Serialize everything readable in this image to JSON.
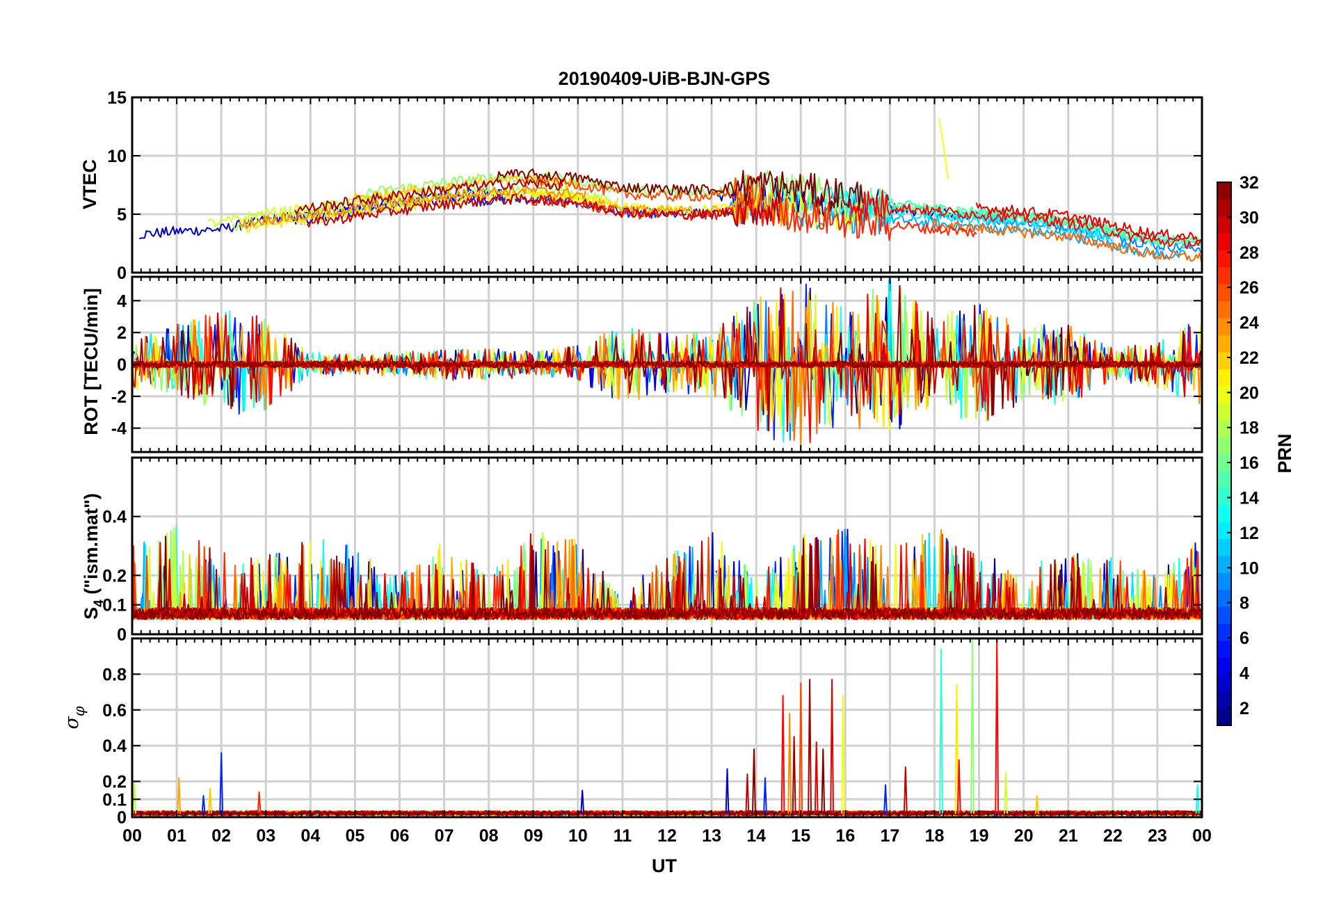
{
  "figure": {
    "title": "20190409-UiB-BJN-GPS",
    "xlabel": "UT",
    "x_tick_labels": [
      "00",
      "01",
      "02",
      "03",
      "04",
      "05",
      "06",
      "07",
      "08",
      "09",
      "10",
      "11",
      "12",
      "13",
      "14",
      "15",
      "16",
      "17",
      "18",
      "19",
      "20",
      "21",
      "22",
      "23",
      "00"
    ],
    "colorbar": {
      "label": "PRN",
      "colormap": "jet",
      "range": [
        1,
        32
      ],
      "ticks": [
        "2",
        "4",
        "6",
        "8",
        "10",
        "12",
        "14",
        "16",
        "18",
        "20",
        "22",
        "24",
        "26",
        "28",
        "30",
        "32"
      ],
      "tick_values": [
        2,
        4,
        6,
        8,
        10,
        12,
        14,
        16,
        18,
        20,
        22,
        24,
        26,
        28,
        30,
        32
      ]
    }
  },
  "chart_data": [
    {
      "type": "line",
      "panel": "VTEC",
      "ylabel": "VTEC",
      "xlim": [
        0,
        24
      ],
      "ylim": [
        0,
        15
      ],
      "y_ticks": [
        "0",
        "5",
        "10",
        "15"
      ],
      "y_tick_values": [
        0,
        5,
        10,
        15
      ],
      "grid": true,
      "series_by_prn": true,
      "approx_profile": {
        "hours": [
          0,
          1,
          2,
          3,
          4,
          5,
          6,
          7,
          8,
          9,
          10,
          11,
          12,
          13,
          14,
          15,
          16,
          17,
          18,
          19,
          20,
          21,
          22,
          23,
          24
        ],
        "typical_vtec": [
          3.5,
          3.8,
          4.0,
          4.8,
          5.2,
          5.8,
          6.3,
          6.8,
          7.2,
          7.3,
          7.0,
          6.2,
          6.0,
          6.0,
          6.5,
          6.0,
          5.5,
          5.2,
          4.8,
          4.5,
          4.2,
          3.8,
          3.0,
          2.2,
          2.0
        ],
        "peak_vtec": 13.2,
        "peak_hour": 18.1
      }
    },
    {
      "type": "line",
      "panel": "ROT",
      "ylabel": "ROT [TECU/min]",
      "xlim": [
        0,
        24
      ],
      "ylim": [
        -5.5,
        5.5
      ],
      "y_ticks": [
        "-4",
        "-2",
        "0",
        "2",
        "4"
      ],
      "y_tick_values": [
        -4,
        -2,
        0,
        2,
        4
      ],
      "grid": true,
      "series_by_prn": true,
      "approx_envelope": {
        "hours": [
          0,
          1,
          2,
          3,
          4,
          5,
          6,
          7,
          8,
          9,
          10,
          11,
          12,
          13,
          14,
          15,
          16,
          17,
          18,
          19,
          20,
          21,
          22,
          23,
          24
        ],
        "abs_max_rot": [
          1.5,
          2.5,
          3.5,
          3.0,
          0.8,
          0.6,
          0.8,
          1.0,
          1.0,
          0.8,
          1.2,
          2.5,
          2.0,
          2.0,
          4.3,
          5.5,
          3.5,
          5.5,
          3.0,
          4.0,
          2.5,
          2.5,
          1.0,
          1.5,
          3.0
        ]
      }
    },
    {
      "type": "line",
      "panel": "S4",
      "ylabel": "S4 (\"ism.mat\")",
      "xlim": [
        0,
        24
      ],
      "ylim": [
        0,
        0.6
      ],
      "y_ticks": [
        "0",
        "0.1",
        "0.2",
        "0.4"
      ],
      "y_tick_values": [
        0,
        0.1,
        0.2,
        0.4
      ],
      "grid": true,
      "series_by_prn": true,
      "approx_envelope": {
        "hours": [
          0,
          1,
          2,
          3,
          4,
          5,
          6,
          7,
          8,
          9,
          10,
          11,
          12,
          13,
          14,
          15,
          16,
          17,
          18,
          19,
          20,
          21,
          22,
          23,
          24
        ],
        "baseline_s4": [
          0.05,
          0.05,
          0.05,
          0.05,
          0.05,
          0.05,
          0.05,
          0.05,
          0.05,
          0.05,
          0.05,
          0.05,
          0.05,
          0.05,
          0.05,
          0.05,
          0.05,
          0.05,
          0.05,
          0.05,
          0.05,
          0.05,
          0.05,
          0.05,
          0.05
        ],
        "max_s4": [
          0.3,
          0.37,
          0.28,
          0.27,
          0.33,
          0.3,
          0.2,
          0.32,
          0.2,
          0.36,
          0.32,
          0.15,
          0.28,
          0.35,
          0.2,
          0.34,
          0.36,
          0.3,
          0.38,
          0.26,
          0.25,
          0.28,
          0.26,
          0.2,
          0.35
        ]
      }
    },
    {
      "type": "line",
      "panel": "sigma_phi",
      "ylabel": "σφ",
      "xlim": [
        0,
        24
      ],
      "ylim": [
        0,
        1.0
      ],
      "y_ticks": [
        "0",
        "0.1",
        "0.2",
        "0.4",
        "0.6",
        "0.8"
      ],
      "y_tick_values": [
        0,
        0.1,
        0.2,
        0.4,
        0.6,
        0.8
      ],
      "grid": true,
      "series_by_prn": true,
      "approx_spikes": [
        {
          "hour": 0.05,
          "value": 0.19,
          "prn": 18
        },
        {
          "hour": 1.05,
          "value": 0.22,
          "prn": 23
        },
        {
          "hour": 1.6,
          "value": 0.12,
          "prn": 6
        },
        {
          "hour": 1.75,
          "value": 0.16,
          "prn": 22
        },
        {
          "hour": 2.0,
          "value": 0.36,
          "prn": 6
        },
        {
          "hour": 2.85,
          "value": 0.14,
          "prn": 27
        },
        {
          "hour": 10.1,
          "value": 0.15,
          "prn": 3
        },
        {
          "hour": 13.35,
          "value": 0.27,
          "prn": 3
        },
        {
          "hour": 13.8,
          "value": 0.24,
          "prn": 30
        },
        {
          "hour": 13.95,
          "value": 0.38,
          "prn": 32
        },
        {
          "hour": 14.2,
          "value": 0.22,
          "prn": 6
        },
        {
          "hour": 14.6,
          "value": 0.68,
          "prn": 28
        },
        {
          "hour": 14.75,
          "value": 0.58,
          "prn": 24
        },
        {
          "hour": 14.85,
          "value": 0.45,
          "prn": 31
        },
        {
          "hour": 15.0,
          "value": 0.75,
          "prn": 26
        },
        {
          "hour": 15.2,
          "value": 0.77,
          "prn": 31
        },
        {
          "hour": 15.35,
          "value": 0.42,
          "prn": 29
        },
        {
          "hour": 15.5,
          "value": 0.38,
          "prn": 32
        },
        {
          "hour": 15.7,
          "value": 0.77,
          "prn": 29
        },
        {
          "hour": 15.95,
          "value": 0.68,
          "prn": 20
        },
        {
          "hour": 16.9,
          "value": 0.18,
          "prn": 6
        },
        {
          "hour": 17.35,
          "value": 0.28,
          "prn": 30
        },
        {
          "hour": 18.15,
          "value": 0.94,
          "prn": 14
        },
        {
          "hour": 18.5,
          "value": 0.74,
          "prn": 21
        },
        {
          "hour": 18.55,
          "value": 0.32,
          "prn": 28
        },
        {
          "hour": 18.85,
          "value": 0.99,
          "prn": 17
        },
        {
          "hour": 19.4,
          "value": 0.99,
          "prn": 28
        },
        {
          "hour": 19.6,
          "value": 0.25,
          "prn": 19
        },
        {
          "hour": 20.3,
          "value": 0.12,
          "prn": 22
        },
        {
          "hour": 23.9,
          "value": 0.18,
          "prn": 13
        }
      ]
    }
  ]
}
